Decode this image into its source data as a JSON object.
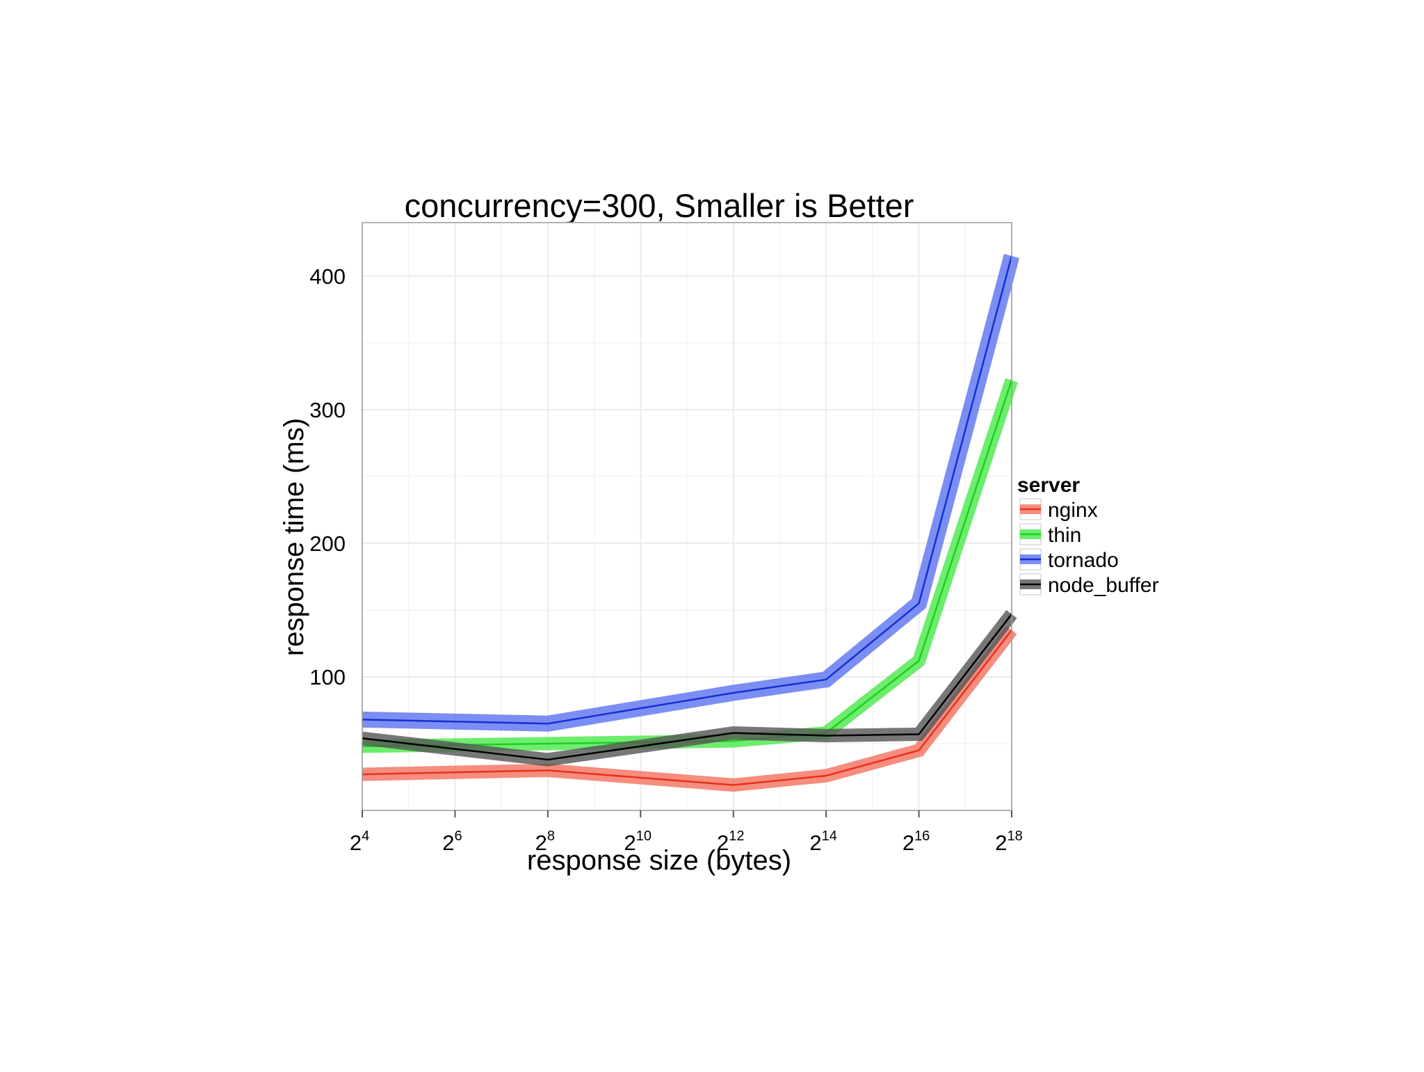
{
  "chart_data": {
    "type": "line",
    "title": "concurrency=300, Smaller is Better",
    "xlabel": "response size (bytes)",
    "ylabel": "response time (ms)",
    "x_scale": "log2",
    "x": [
      4,
      8,
      12,
      14,
      16,
      18
    ],
    "xlim": [
      4,
      18
    ],
    "ylim": [
      0,
      440
    ],
    "x_ticks": [
      {
        "base": "2",
        "exp": "4",
        "value": 4
      },
      {
        "base": "2",
        "exp": "6",
        "value": 6
      },
      {
        "base": "2",
        "exp": "8",
        "value": 8
      },
      {
        "base": "2",
        "exp": "10",
        "value": 10
      },
      {
        "base": "2",
        "exp": "12",
        "value": 12
      },
      {
        "base": "2",
        "exp": "14",
        "value": 14
      },
      {
        "base": "2",
        "exp": "16",
        "value": 16
      },
      {
        "base": "2",
        "exp": "18",
        "value": 18
      }
    ],
    "y_ticks": [
      {
        "label": "100",
        "value": 100
      },
      {
        "label": "200",
        "value": 200
      },
      {
        "label": "300",
        "value": 300
      },
      {
        "label": "400",
        "value": 400
      }
    ],
    "grid": true,
    "legend": {
      "title": "server",
      "position": "right"
    },
    "series": [
      {
        "name": "nginx",
        "color": "#e8301c",
        "band_color": "#f4715e",
        "values": [
          27,
          30,
          19,
          26,
          45,
          135
        ],
        "band": 5
      },
      {
        "name": "thin",
        "color": "#1fcf1f",
        "band_color": "#48e848",
        "values": [
          48,
          50,
          52,
          58,
          112,
          322
        ],
        "band": 5
      },
      {
        "name": "tornado",
        "color": "#1530d0",
        "band_color": "#5a72f0",
        "values": [
          68,
          65,
          88,
          98,
          155,
          415
        ],
        "band": 6
      },
      {
        "name": "node_buffer",
        "color": "#000000",
        "band_color": "#555555",
        "values": [
          54,
          38,
          58,
          56,
          57,
          147
        ],
        "band": 5
      }
    ]
  }
}
